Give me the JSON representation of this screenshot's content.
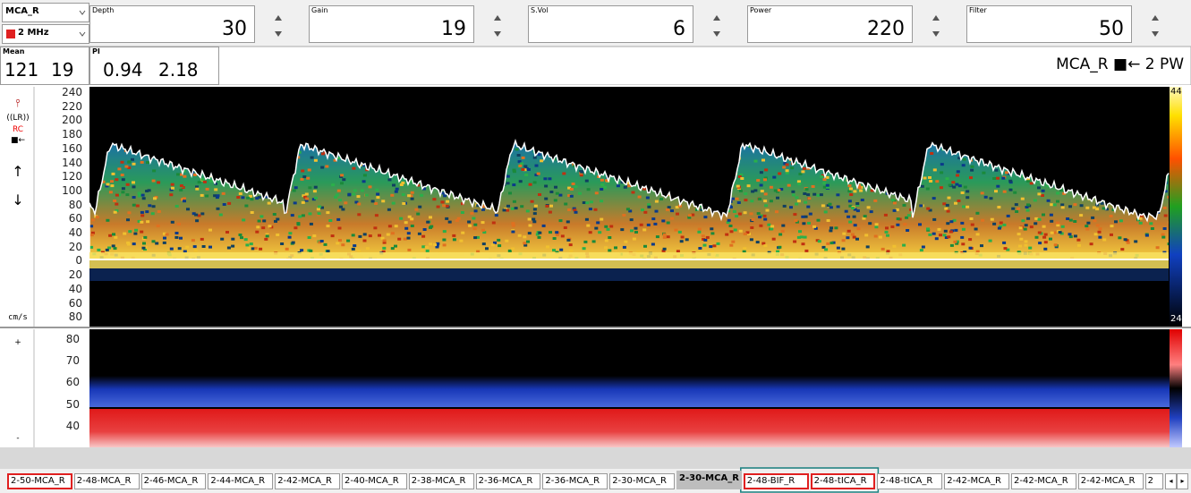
{
  "selectors": {
    "vessel": "MCA_R",
    "probe": "2 MHz"
  },
  "controls": [
    {
      "label": "Depth",
      "value": 30
    },
    {
      "label": "Gain",
      "value": 19
    },
    {
      "label": "S.Vol",
      "value": 6
    },
    {
      "label": "Power",
      "value": 220
    },
    {
      "label": "Filter",
      "value": 50
    }
  ],
  "readouts": [
    {
      "label": "Mean",
      "values": [
        121,
        19
      ]
    },
    {
      "label": "PI",
      "values": [
        0.94,
        2.18
      ]
    }
  ],
  "status": "MCA_R ■← 2 PW",
  "sidebar": {
    "lr": "((LR))",
    "rc": "RC",
    "dir": "■←",
    "up": "↑",
    "down": "↓",
    "unit": "cm/s",
    "plus": "+",
    "minus": "-"
  },
  "spectrum": {
    "y_labels": [
      "240",
      "220",
      "200",
      "180",
      "160",
      "140",
      "120",
      "100",
      "80",
      "60",
      "40",
      "20",
      "0",
      "20",
      "40",
      "60",
      "80"
    ],
    "scale_max": "44",
    "scale_min": "24"
  },
  "mmode": {
    "y_labels": [
      "80",
      "70",
      "60",
      "50",
      "40"
    ]
  },
  "tabs": [
    {
      "label": "2-50-MCA_R",
      "flagged": true
    },
    {
      "label": "2-48-MCA_R"
    },
    {
      "label": "2-46-MCA_R"
    },
    {
      "label": "2-44-MCA_R"
    },
    {
      "label": "2-42-MCA_R"
    },
    {
      "label": "2-40-MCA_R"
    },
    {
      "label": "2-38-MCA_R"
    },
    {
      "label": "2-36-MCA_R"
    },
    {
      "label": "2-36-MCA_R"
    },
    {
      "label": "2-30-MCA_R"
    },
    {
      "label": "2-30-MCA_R",
      "selected": true
    },
    {
      "label": "2-48-BIF_R",
      "flagged": true
    },
    {
      "label": "2-48-tICA_R",
      "flagged": true
    },
    {
      "label": "2-48-tICA_R"
    },
    {
      "label": "2-42-MCA_R"
    },
    {
      "label": "2-42-MCA_R"
    },
    {
      "label": "2-42-MCA_R"
    },
    {
      "label": "2"
    }
  ]
}
